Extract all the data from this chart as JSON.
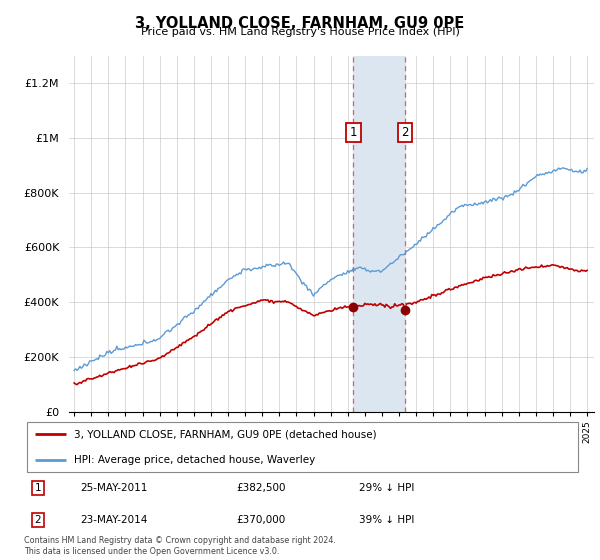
{
  "title": "3, YOLLAND CLOSE, FARNHAM, GU9 0PE",
  "subtitle": "Price paid vs. HM Land Registry's House Price Index (HPI)",
  "legend_line1": "3, YOLLAND CLOSE, FARNHAM, GU9 0PE (detached house)",
  "legend_line2": "HPI: Average price, detached house, Waverley",
  "transaction1_date": "25-MAY-2011",
  "transaction1_price": "£382,500",
  "transaction1_hpi": "29% ↓ HPI",
  "transaction2_date": "23-MAY-2014",
  "transaction2_price": "£370,000",
  "transaction2_hpi": "39% ↓ HPI",
  "footnote": "Contains HM Land Registry data © Crown copyright and database right 2024.\nThis data is licensed under the Open Government Licence v3.0.",
  "ylim": [
    0,
    1300000
  ],
  "yticks": [
    0,
    200000,
    400000,
    600000,
    800000,
    1000000,
    1200000
  ],
  "ytick_labels": [
    "£0",
    "£200K",
    "£400K",
    "£600K",
    "£800K",
    "£1M",
    "£1.2M"
  ],
  "hpi_color": "#5b9bd5",
  "price_color": "#c00000",
  "highlight_color": "#dce6f1",
  "vline_color": "#e06060",
  "marker_color": "#8b0000",
  "background_color": "#ffffff",
  "grid_color": "#cccccc"
}
